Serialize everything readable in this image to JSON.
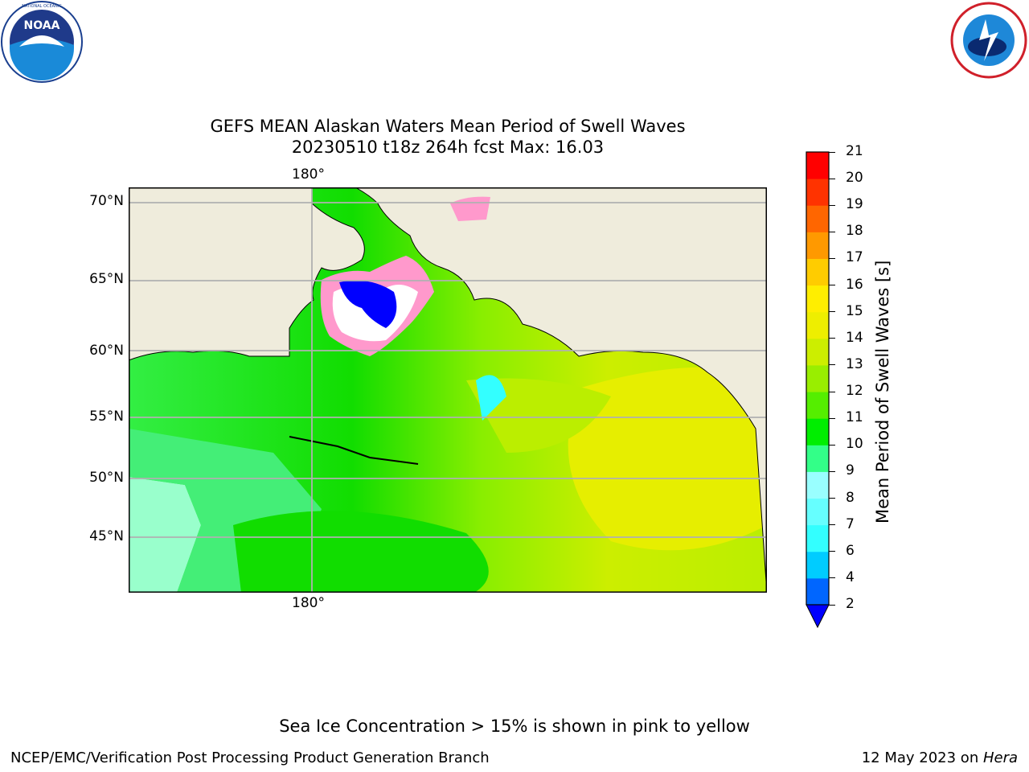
{
  "logos": {
    "left": {
      "name": "NOAA",
      "ring_text": "NATIONAL OCEANIC AND ATMOSPHERIC ADMINISTRATION · U.S. DEPARTMENT OF COMMERCE"
    },
    "right": {
      "name": "NATIONAL WEATHER SERVICE"
    }
  },
  "title": {
    "line1": "GEFS MEAN Alaskan Waters Mean Period of Swell Waves",
    "line2": "20230510 t18z 264h fcst   Max: 16.03"
  },
  "map": {
    "lat_labels": [
      "70°N",
      "65°N",
      "60°N",
      "55°N",
      "50°N",
      "45°N"
    ],
    "lon_label_top": "180°",
    "lon_label_bottom": "180°",
    "colors": {
      "land": "#efecdc",
      "ice": "#ffffff",
      "grid": "#b0b0b0"
    }
  },
  "colorbar": {
    "label": "Mean Period of Swell Waves [s]",
    "ticks": [
      "2",
      "4",
      "6",
      "7",
      "8",
      "9",
      "10",
      "11",
      "12",
      "13",
      "14",
      "15",
      "16",
      "17",
      "18",
      "19",
      "20",
      "21"
    ],
    "colors": [
      "#0066ff",
      "#00ccff",
      "#33ffff",
      "#66ffff",
      "#99ffff",
      "#33ff88",
      "#00ee00",
      "#55ee00",
      "#99ee00",
      "#ccee00",
      "#eeee00",
      "#ffee00",
      "#ffcc00",
      "#ff9900",
      "#ff6600",
      "#ff3300",
      "#ff0000"
    ],
    "under_color": "#0000ff"
  },
  "footer": {
    "note": "Sea Ice Concentration > 15% is shown in pink to yellow",
    "left": "NCEP/EMC/Verification Post Processing Product Generation Branch",
    "right_prefix": "12 May 2023 on ",
    "right_machine": "Hera"
  }
}
